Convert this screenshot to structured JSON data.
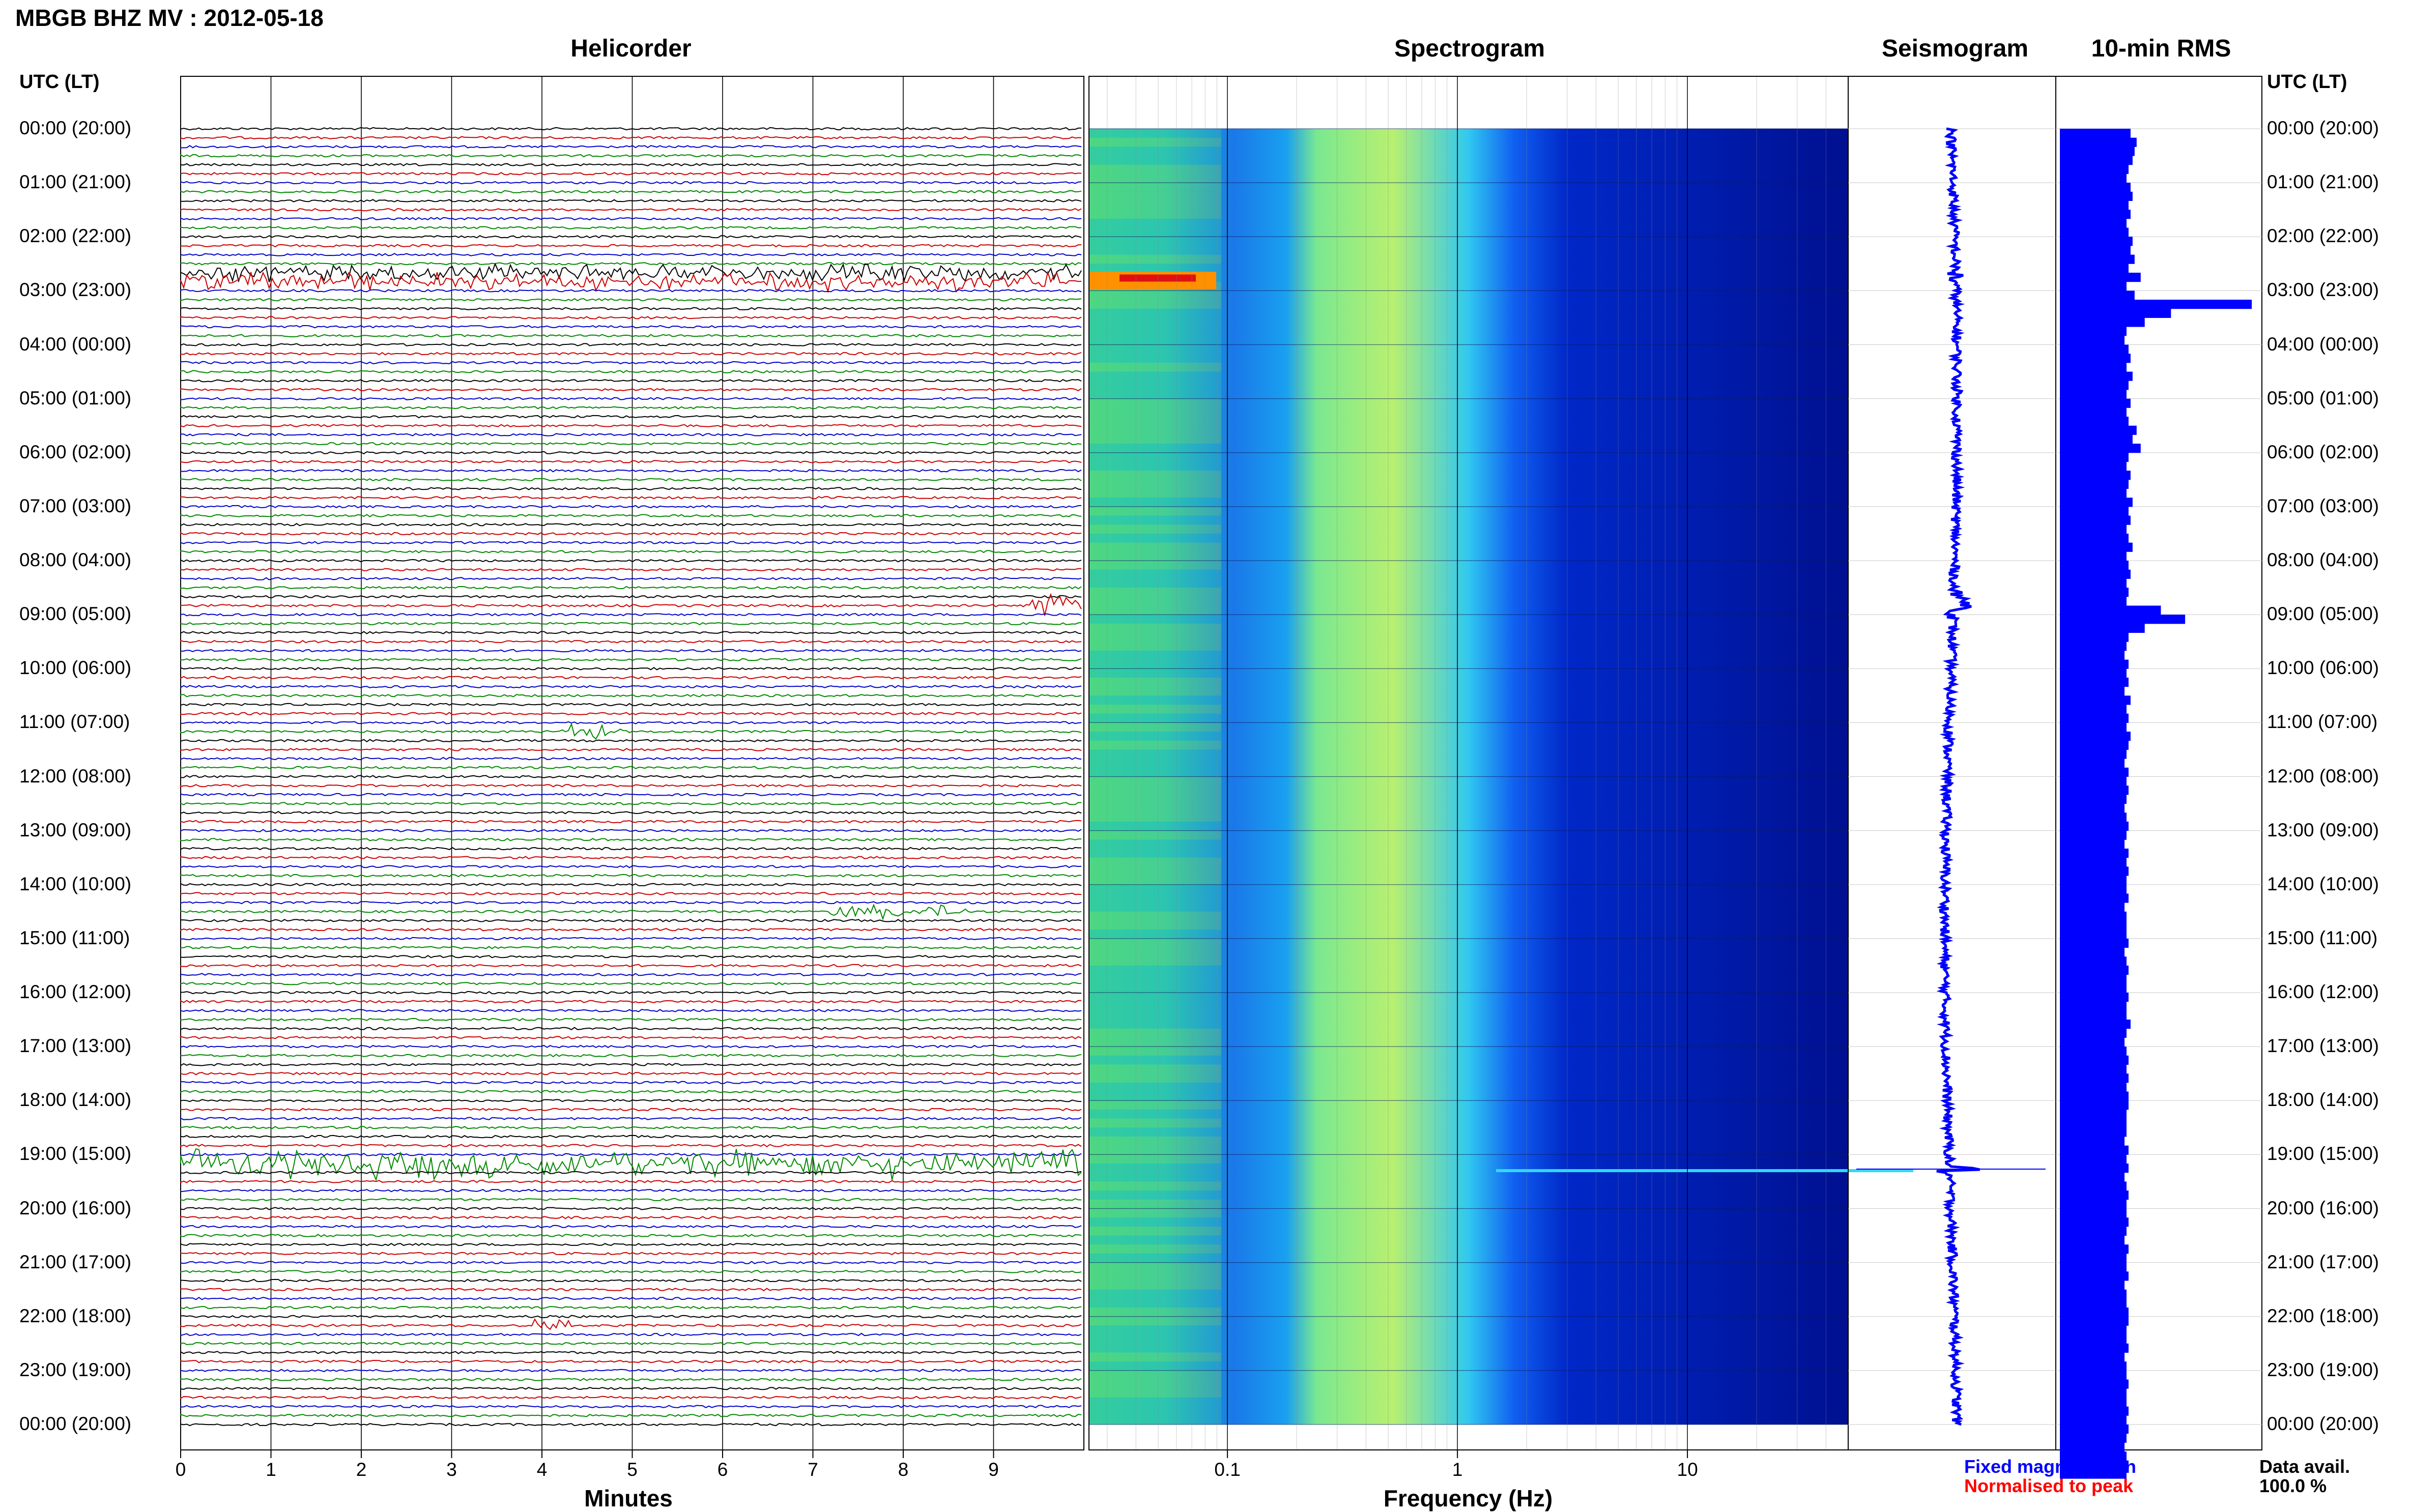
{
  "header": {
    "title": "MBGB BHZ MV : 2012-05-18",
    "panels": [
      "Helicorder",
      "Spectrogram",
      "Seismogram",
      "10-min RMS"
    ],
    "time_axis_label": "UTC (LT)",
    "time_ticks": [
      "00:00 (20:00)",
      "01:00 (21:00)",
      "02:00 (22:00)",
      "03:00 (23:00)",
      "04:00 (00:00)",
      "05:00 (01:00)",
      "06:00 (02:00)",
      "07:00 (03:00)",
      "08:00 (04:00)",
      "09:00 (05:00)",
      "10:00 (06:00)",
      "11:00 (07:00)",
      "12:00 (08:00)",
      "13:00 (09:00)",
      "14:00 (10:00)",
      "15:00 (11:00)",
      "16:00 (12:00)",
      "17:00 (13:00)",
      "18:00 (14:00)",
      "19:00 (15:00)",
      "20:00 (16:00)",
      "21:00 (17:00)",
      "22:00 (18:00)",
      "23:00 (19:00)",
      "00:00 (20:00)"
    ]
  },
  "chart_data": [
    {
      "type": "line",
      "panel": "Helicorder",
      "xlabel": "Minutes",
      "x_ticks": [
        "0",
        "1",
        "2",
        "3",
        "4",
        "5",
        "6",
        "7",
        "8",
        "9"
      ],
      "xlim": [
        0,
        10
      ],
      "rows_per_hour": 6,
      "trace_colors": [
        "#000000",
        "#cc0000",
        "#0000cc",
        "#008800"
      ],
      "events": [
        {
          "hour": 2.75,
          "minute_start": 0,
          "minute_end": 10,
          "amplitude": 1.2,
          "label": ""
        },
        {
          "hour": 8.83,
          "minute_start": 9.4,
          "minute_end": 10,
          "amplitude": 1.5,
          "label": ""
        },
        {
          "hour": 11.17,
          "minute_start": 4.2,
          "minute_end": 4.9,
          "amplitude": 1.1,
          "label": ""
        },
        {
          "hour": 14.5,
          "minute_start": 7.2,
          "minute_end": 8.7,
          "amplitude": 0.9,
          "label": ""
        },
        {
          "hour": 19.17,
          "minute_start": 0,
          "minute_end": 10,
          "amplitude": 2.2,
          "label": ""
        },
        {
          "hour": 22.17,
          "minute_start": 3.9,
          "minute_end": 4.3,
          "amplitude": 0.8,
          "label": ""
        }
      ]
    },
    {
      "type": "heatmap",
      "panel": "Spectrogram",
      "xlabel": "Frequency (Hz)",
      "x_scale": "log",
      "x_ticks": [
        "0.1",
        "1",
        "10"
      ],
      "xlim": [
        0.025,
        50
      ],
      "ylim_hours": [
        0,
        24
      ],
      "colormap": [
        "#00007f",
        "#0000ff",
        "#0080ff",
        "#00ffff",
        "#80ff80",
        "#ffff00",
        "#ff8000",
        "#ff0000"
      ]
    },
    {
      "type": "line",
      "panel": "Seismogram",
      "series": [
        {
          "name": "",
          "color": "#0000ff"
        }
      ]
    },
    {
      "type": "bar",
      "panel": "10-min RMS",
      "orientation": "horizontal",
      "color": "#0000ff",
      "bins_per_hour": 6,
      "values": [
        0.35,
        0.38,
        0.37,
        0.36,
        0.34,
        0.33,
        0.35,
        0.36,
        0.34,
        0.35,
        0.33,
        0.34,
        0.36,
        0.35,
        0.37,
        0.34,
        0.4,
        0.33,
        0.37,
        0.95,
        0.55,
        0.42,
        0.33,
        0.32,
        0.34,
        0.35,
        0.33,
        0.36,
        0.34,
        0.33,
        0.35,
        0.33,
        0.34,
        0.38,
        0.36,
        0.4,
        0.34,
        0.33,
        0.35,
        0.34,
        0.33,
        0.36,
        0.34,
        0.35,
        0.33,
        0.34,
        0.36,
        0.33,
        0.34,
        0.35,
        0.33,
        0.34,
        0.33,
        0.5,
        0.62,
        0.42,
        0.34,
        0.33,
        0.32,
        0.34,
        0.33,
        0.34,
        0.32,
        0.35,
        0.33,
        0.34,
        0.33,
        0.35,
        0.34,
        0.33,
        0.32,
        0.34,
        0.33,
        0.34,
        0.33,
        0.32,
        0.33,
        0.34,
        0.33,
        0.32,
        0.34,
        0.33,
        0.34,
        0.33,
        0.33,
        0.34,
        0.32,
        0.33,
        0.33,
        0.33,
        0.34,
        0.32,
        0.33,
        0.34,
        0.33,
        0.33,
        0.34,
        0.33,
        0.33,
        0.35,
        0.33,
        0.32,
        0.33,
        0.34,
        0.33,
        0.34,
        0.33,
        0.34,
        0.34,
        0.33,
        0.33,
        0.33,
        0.32,
        0.34,
        0.33,
        0.34,
        0.32,
        0.33,
        0.34,
        0.33,
        0.33,
        0.34,
        0.33,
        0.32,
        0.34,
        0.33,
        0.33,
        0.34,
        0.32,
        0.33,
        0.33,
        0.34,
        0.34,
        0.33,
        0.33,
        0.34,
        0.32,
        0.33,
        0.33,
        0.34,
        0.33,
        0.33,
        0.34,
        0.33,
        0.34,
        0.33,
        0.32,
        0.33,
        0.34,
        0.33
      ],
      "xlim": [
        0,
        1.0
      ]
    }
  ],
  "footer": {
    "legend_fixed": "Fixed magnification",
    "legend_normalised": "Normalised to peak",
    "data_avail_label": "Data avail.",
    "data_avail_value": "100.0 %",
    "legend_fixed_color": "#0000ff",
    "legend_normalised_color": "#ff0000"
  }
}
